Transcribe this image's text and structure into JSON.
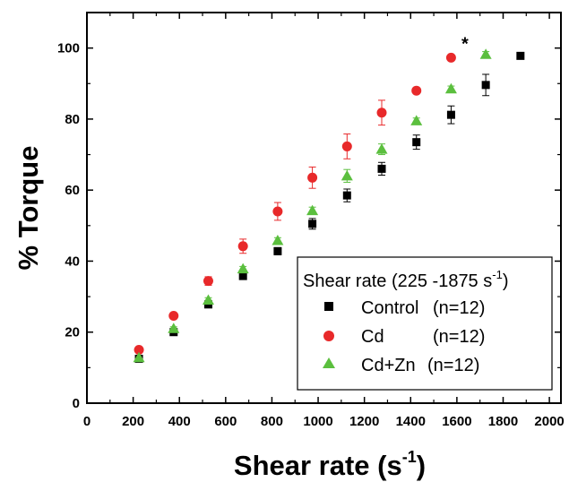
{
  "chart_data": {
    "type": "scatter",
    "xlabel": "Shear rate (s",
    "xlabel_sup": "-1",
    "xlabel_close": ")",
    "ylabel": "% Torque",
    "xlim": [
      0,
      2050
    ],
    "ylim": [
      0,
      110
    ],
    "x_ticks": [
      0,
      200,
      400,
      600,
      800,
      1000,
      1200,
      1400,
      1600,
      1800,
      2000
    ],
    "y_ticks": [
      0,
      20,
      40,
      60,
      80,
      100
    ],
    "legend": {
      "title": "Shear rate (225 -1875 s",
      "title_sup": "-1",
      "title_close": ")",
      "placement": "bottom-right"
    },
    "series": [
      {
        "name": "Control",
        "label_suffix": "(n=12)",
        "marker": "square",
        "color": "#000000",
        "x": [
          225,
          375,
          525,
          675,
          825,
          975,
          1125,
          1275,
          1425,
          1575,
          1725,
          1875
        ],
        "y": [
          12.5,
          20,
          27.8,
          35.8,
          42.8,
          50.5,
          58.5,
          66,
          73.5,
          81.2,
          89.6,
          97.8
        ],
        "err": [
          0.5,
          0.5,
          0.5,
          0.7,
          1.0,
          1.5,
          1.8,
          1.8,
          2.0,
          2.5,
          3.0,
          0
        ]
      },
      {
        "name": "Cd",
        "label_suffix": "(n=12)",
        "marker": "circle",
        "color": "#e8292a",
        "x": [
          225,
          375,
          525,
          675,
          825,
          975,
          1125,
          1275,
          1425,
          1575
        ],
        "y": [
          15,
          24.6,
          34.4,
          44.2,
          54,
          63.5,
          72.3,
          81.8,
          88,
          97.3
        ],
        "err": [
          0.5,
          0.8,
          1.2,
          2.0,
          2.5,
          3.0,
          3.5,
          3.5,
          0.5,
          0.5
        ]
      },
      {
        "name": "Cd+Zn",
        "label_suffix": "(n=12)",
        "marker": "triangle",
        "color": "#5bbf3e",
        "x": [
          225,
          375,
          525,
          675,
          825,
          975,
          1125,
          1275,
          1425,
          1575,
          1725
        ],
        "y": [
          12.8,
          21,
          29,
          37.8,
          45.8,
          54.2,
          64,
          71.5,
          79.5,
          88.5,
          98.2
        ],
        "err": [
          0.5,
          0.5,
          0.7,
          0.7,
          0.8,
          1.0,
          1.8,
          1.5,
          0.8,
          0.8,
          0.8
        ]
      }
    ],
    "annotations": [
      {
        "text": "*",
        "x": 1635,
        "y": 101.5
      }
    ]
  }
}
